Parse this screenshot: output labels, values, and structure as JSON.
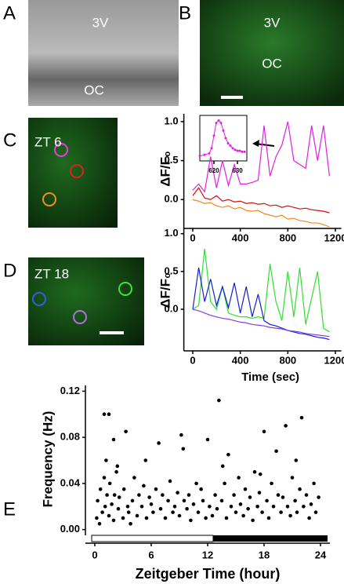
{
  "panel_labels": [
    "A",
    "B",
    "C",
    "D",
    "E"
  ],
  "image_labels": [
    "3V",
    "OC",
    "3V",
    "OC",
    "ZT 6",
    "ZT 18"
  ],
  "chart_data": [
    {
      "type": "line",
      "ylabel": "ΔF/F₀",
      "x": [
        0,
        50,
        100,
        150,
        200,
        250,
        300,
        350,
        400,
        450,
        500,
        550,
        600,
        650,
        700,
        750,
        800,
        850,
        900,
        950,
        1000,
        1050,
        1100,
        1150
      ],
      "series": [
        {
          "color": "#e020e0",
          "values": [
            0.12,
            0.2,
            0.1,
            0.55,
            0.15,
            0.5,
            0.18,
            0.45,
            0.2,
            0.2,
            0.22,
            0.25,
            0.95,
            0.3,
            0.55,
            0.7,
            1.0,
            0.5,
            0.45,
            0.4,
            0.95,
            0.5,
            0.95,
            0.3
          ]
        },
        {
          "color": "#d01010",
          "values": [
            0.05,
            0.15,
            0.02,
            0.0,
            0.05,
            -0.02,
            0.0,
            -0.03,
            -0.02,
            -0.05,
            -0.04,
            -0.06,
            -0.05,
            -0.08,
            -0.07,
            -0.1,
            -0.08,
            -0.1,
            -0.12,
            -0.11,
            -0.13,
            -0.14,
            -0.15,
            -0.17
          ]
        },
        {
          "color": "#f08a20",
          "values": [
            0.0,
            -0.02,
            -0.05,
            -0.04,
            -0.08,
            -0.1,
            -0.08,
            -0.12,
            -0.1,
            -0.14,
            -0.15,
            -0.14,
            -0.18,
            -0.2,
            -0.22,
            -0.2,
            -0.25,
            -0.24,
            -0.27,
            -0.28,
            -0.3,
            -0.3,
            -0.32,
            -0.35
          ]
        }
      ],
      "xlim": [
        -75,
        1250
      ],
      "ylim": [
        -0.37,
        1.1
      ],
      "xticks": [
        0,
        400,
        800,
        1200
      ],
      "yticks": [
        {
          "value": 0,
          "label": "0.0"
        },
        0.5,
        {
          "value": 1,
          "label": "1.0"
        }
      ]
    },
    {
      "type": "line",
      "x": [
        614,
        616,
        618,
        619,
        620,
        621,
        622,
        623,
        624,
        625,
        626,
        627,
        628,
        629,
        630,
        631,
        632,
        633
      ],
      "series": [
        {
          "color": "#e020e0",
          "values": [
            0.3,
            0.32,
            0.35,
            0.45,
            0.7,
            0.95,
            1.0,
            0.95,
            0.8,
            0.65,
            0.55,
            0.5,
            0.45,
            0.42,
            0.4,
            0.4,
            0.38,
            0.38
          ]
        }
      ],
      "xlim": [
        614,
        634
      ],
      "ylim": [
        0.2,
        1.1
      ],
      "xticks": [
        620,
        630
      ]
    },
    {
      "type": "line",
      "ylabel": "ΔF/F₀",
      "xlabel": "Time (sec)",
      "x": [
        0,
        50,
        100,
        150,
        200,
        250,
        300,
        350,
        400,
        450,
        500,
        550,
        600,
        650,
        700,
        750,
        800,
        850,
        900,
        950,
        1000,
        1050,
        1100,
        1150
      ],
      "series": [
        {
          "color": "#30e030",
          "values": [
            0,
            0.05,
            0.8,
            0.1,
            0.0,
            0.3,
            -0.05,
            -0.08,
            -0.1,
            -0.1,
            -0.12,
            -0.1,
            -0.12,
            0.6,
            0.1,
            -0.15,
            0.5,
            -0.1,
            0.55,
            -0.2,
            0.15,
            0.5,
            -0.25,
            -0.3
          ]
        },
        {
          "color": "#1020d0",
          "values": [
            0,
            0.55,
            0.1,
            0.4,
            0.05,
            0.3,
            0.02,
            0.35,
            -0.05,
            0.3,
            -0.1,
            0.2,
            -0.15,
            -0.2,
            -0.22,
            -0.25,
            -0.28,
            -0.3,
            -0.32,
            -0.33,
            -0.35,
            -0.37,
            -0.38,
            -0.4
          ]
        },
        {
          "color": "#8040e0",
          "values": [
            0,
            -0.02,
            -0.05,
            -0.08,
            -0.1,
            -0.12,
            -0.13,
            -0.15,
            -0.17,
            -0.18,
            -0.2,
            -0.21,
            -0.22,
            -0.24,
            -0.25,
            -0.26,
            -0.28,
            -0.29,
            -0.3,
            -0.32,
            -0.33,
            -0.34,
            -0.35,
            -0.36
          ]
        }
      ],
      "xlim": [
        -75,
        1250
      ],
      "ylim": [
        -0.55,
        1.08
      ],
      "xticks": [
        0,
        400,
        800,
        1200
      ],
      "yticks": [
        {
          "value": 0,
          "label": "0.0"
        },
        0.5,
        {
          "value": 1,
          "label": "1.0"
        }
      ]
    },
    {
      "type": "scatter",
      "ylabel": "Frequency (Hz)",
      "xlabel": "Zeitgeber Time (hour)",
      "color": "#000000",
      "x": [
        0.2,
        0.3,
        0.5,
        0.6,
        0.8,
        1,
        1,
        1.1,
        1.2,
        1.3,
        1.5,
        1.5,
        1.6,
        1.8,
        2,
        2,
        2.1,
        2.3,
        2.5,
        2.6,
        3,
        3.1,
        3.3,
        3.5,
        3.6,
        3.8,
        4,
        4.2,
        4.5,
        4.7,
        5,
        5.2,
        5.5,
        5.8,
        6,
        6.2,
        6.5,
        6.8,
        7,
        7.2,
        7.5,
        7.8,
        8,
        8.3,
        8.5,
        8.8,
        9,
        9.2,
        9.5,
        9.8,
        10,
        10.2,
        10.5,
        10.8,
        11,
        11.3,
        11.5,
        11.8,
        12,
        12.2,
        12.5,
        12.8,
        13,
        13.2,
        13.5,
        13.8,
        14,
        14.2,
        14.5,
        14.8,
        15,
        15.3,
        15.5,
        15.8,
        16,
        16.3,
        16.5,
        16.8,
        17,
        17.3,
        17.5,
        17.8,
        18,
        18.3,
        18.5,
        18.8,
        19,
        19.3,
        19.5,
        19.8,
        20,
        20.3,
        20.5,
        20.8,
        21,
        21.3,
        21.5,
        21.8,
        22,
        22.2,
        22.5,
        22.8,
        23,
        23.3,
        23.5,
        23.8,
        2.4,
        5.4,
        9.4,
        13.6,
        17.6,
        21.4
      ],
      "values": [
        0.01,
        0.025,
        0.005,
        0.035,
        0.015,
        0.045,
        0.1,
        0.02,
        0.06,
        0.03,
        0.1,
        0.012,
        0.04,
        0.022,
        0.078,
        0.008,
        0.03,
        0.05,
        0.018,
        0.028,
        0.01,
        0.035,
        0.085,
        0.02,
        0.015,
        0.005,
        0.025,
        0.045,
        0.012,
        0.03,
        0.02,
        0.038,
        0.01,
        0.028,
        0.022,
        0.015,
        0.035,
        0.075,
        0.018,
        0.03,
        0.01,
        0.025,
        0.042,
        0.015,
        0.02,
        0.032,
        0.012,
        0.082,
        0.025,
        0.018,
        0.03,
        0.008,
        0.022,
        0.04,
        0.015,
        0.035,
        0.025,
        0.01,
        0.078,
        0.02,
        0.012,
        0.03,
        0.018,
        0.112,
        0.025,
        0.04,
        0.01,
        0.065,
        0.02,
        0.03,
        0.015,
        0.045,
        0.022,
        0.012,
        0.035,
        0.018,
        0.028,
        0.008,
        0.05,
        0.02,
        0.032,
        0.015,
        0.085,
        0.025,
        0.01,
        0.04,
        0.02,
        0.068,
        0.03,
        0.015,
        0.028,
        0.09,
        0.02,
        0.012,
        0.045,
        0.025,
        0.015,
        0.035,
        0.097,
        0.02,
        0.03,
        0.01,
        0.022,
        0.04,
        0.015,
        0.028,
        0.055,
        0.06,
        0.07,
        0.055,
        0.048,
        0.06
      ],
      "xlim": [
        -1,
        25
      ],
      "ylim": [
        -0.005,
        0.125
      ],
      "xticks": [
        0,
        6,
        12,
        18,
        24
      ],
      "yticks": [
        {
          "value": 0,
          "label": "0.00"
        },
        0.04,
        0.08,
        0.12
      ]
    }
  ]
}
